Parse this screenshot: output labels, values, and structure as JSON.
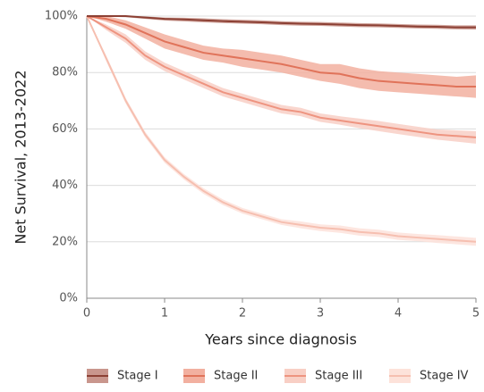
{
  "chart_data": {
    "type": "line",
    "xlabel": "Years since diagnosis",
    "ylabel": "Net Survival, 2013-2022",
    "x": [
      0,
      0.25,
      0.5,
      0.75,
      1,
      1.25,
      1.5,
      1.75,
      2,
      2.25,
      2.5,
      2.75,
      3,
      3.25,
      3.5,
      3.75,
      4,
      4.25,
      4.5,
      4.75,
      5
    ],
    "xlim": [
      0,
      5
    ],
    "xticks": [
      0,
      1,
      2,
      3,
      4,
      5
    ],
    "ylim": [
      0,
      100
    ],
    "yticks": [
      {
        "value": 0,
        "label": "0%"
      },
      {
        "value": 20,
        "label": "20%"
      },
      {
        "value": 40,
        "label": "40%"
      },
      {
        "value": 60,
        "label": "60%"
      },
      {
        "value": 80,
        "label": "80%"
      },
      {
        "value": 100,
        "label": "100%"
      }
    ],
    "grid": true,
    "series": [
      {
        "name": "Stage I",
        "color": "#8c4034",
        "band_color": "#c9968d",
        "values": [
          100,
          100,
          100,
          99.5,
          99,
          98.8,
          98.5,
          98.2,
          98,
          97.8,
          97.5,
          97.3,
          97.2,
          97,
          96.8,
          96.7,
          96.5,
          96.3,
          96.2,
          96,
          96
        ],
        "lower": [
          100,
          99.8,
          99.6,
          99,
          98.4,
          98.1,
          97.8,
          97.5,
          97.3,
          97.1,
          96.8,
          96.6,
          96.5,
          96.3,
          96.1,
          96,
          95.8,
          95.6,
          95.5,
          95.3,
          95.2
        ],
        "upper": [
          100,
          100,
          100,
          99.9,
          99.5,
          99.4,
          99.2,
          98.9,
          98.7,
          98.5,
          98.2,
          98,
          97.9,
          97.7,
          97.5,
          97.4,
          97.2,
          97,
          96.9,
          96.7,
          96.7
        ]
      },
      {
        "name": "Stage II",
        "color": "#e0735a",
        "band_color": "#f2b0a0",
        "values": [
          100,
          99,
          97,
          94,
          91,
          89,
          87,
          86,
          85,
          84,
          83,
          81.5,
          80,
          79.5,
          78,
          77,
          76.5,
          76,
          75.5,
          75,
          75
        ],
        "lower": [
          100,
          98,
          95.5,
          92,
          88.5,
          86.5,
          84.5,
          83.5,
          82,
          81,
          80,
          78.5,
          77,
          76,
          74.5,
          73.5,
          73,
          72.5,
          72,
          71.5,
          71
        ],
        "upper": [
          100,
          100,
          98.5,
          96,
          93.5,
          91.5,
          89.5,
          88.5,
          88,
          87,
          86,
          84.5,
          83,
          83,
          81.5,
          80.5,
          80,
          79.5,
          79,
          78.5,
          79
        ]
      },
      {
        "name": "Stage III",
        "color": "#ee9480",
        "band_color": "#f8cfc5",
        "values": [
          100,
          96,
          92,
          86,
          82,
          79,
          76,
          73,
          71,
          69,
          67,
          66,
          64,
          63,
          62,
          61,
          60,
          59,
          58,
          57.5,
          57
        ],
        "lower": [
          100,
          95,
          90.5,
          84.5,
          80.5,
          77.5,
          74.5,
          71.5,
          69.5,
          67.5,
          65.5,
          64.5,
          62.5,
          61.5,
          60.3,
          59.2,
          58.2,
          57.2,
          56.2,
          55.5,
          54.8
        ],
        "upper": [
          100,
          97,
          93.5,
          87.5,
          83.5,
          80.5,
          77.5,
          74.5,
          72.5,
          70.5,
          68.5,
          67.5,
          65.5,
          64.5,
          63.7,
          62.8,
          61.8,
          60.8,
          59.8,
          59.5,
          59.2
        ]
      },
      {
        "name": "Stage IV",
        "color": "#f6bfb0",
        "band_color": "#fde2da",
        "values": [
          100,
          85,
          70,
          58,
          49,
          43,
          38,
          34,
          31,
          29,
          27,
          26,
          25,
          24.5,
          23.5,
          23,
          22,
          21.5,
          21,
          20.5,
          20
        ],
        "lower": [
          100,
          84,
          69,
          57,
          48,
          42,
          37,
          33,
          30,
          28,
          26,
          24.8,
          23.8,
          23.2,
          22.2,
          21.7,
          20.7,
          20.2,
          19.6,
          19.1,
          18.6
        ],
        "upper": [
          100,
          86,
          71,
          59,
          50,
          44,
          39,
          35,
          32,
          30,
          28,
          27.2,
          26.2,
          25.8,
          24.8,
          24.3,
          23.3,
          22.8,
          22.4,
          21.9,
          21.4
        ]
      }
    ]
  }
}
